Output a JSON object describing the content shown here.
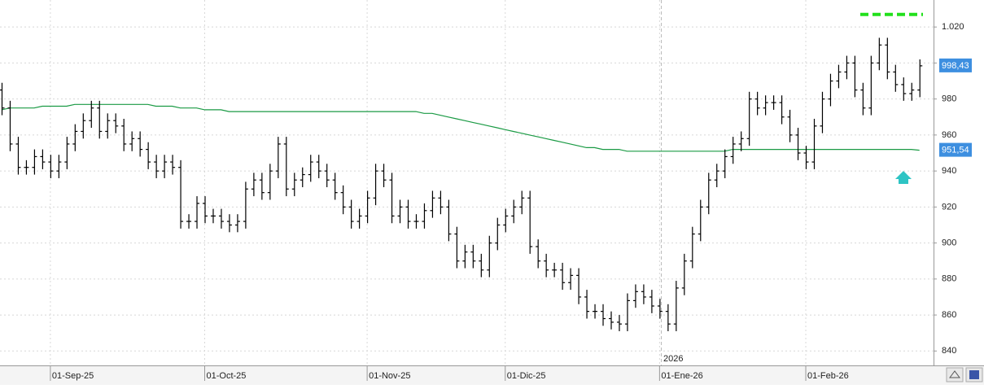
{
  "chart_data": {
    "type": "ohlc",
    "categories": [
      null,
      null,
      null,
      null,
      null,
      null,
      "01-Sep-25",
      null,
      null,
      null,
      null,
      null,
      null,
      null,
      null,
      null,
      null,
      null,
      null,
      null,
      null,
      null,
      null,
      null,
      null,
      "01-Oct-25",
      null,
      null,
      null,
      null,
      null,
      null,
      null,
      null,
      null,
      null,
      null,
      null,
      null,
      null,
      null,
      null,
      null,
      null,
      null,
      "01-Nov-25",
      null,
      null,
      null,
      null,
      null,
      null,
      null,
      null,
      null,
      null,
      null,
      null,
      null,
      null,
      null,
      null,
      "01-Dic-25",
      null,
      null,
      null,
      null,
      null,
      null,
      null,
      null,
      null,
      null,
      null,
      null,
      null,
      null,
      null,
      null,
      null,
      null,
      "01-Ene-26",
      null,
      null,
      null,
      null,
      null,
      null,
      null,
      null,
      null,
      null,
      null,
      null,
      null,
      null,
      null,
      null,
      null,
      "01-Feb-26",
      null,
      null,
      null,
      null,
      null,
      null,
      null,
      null,
      null,
      null,
      null,
      null,
      null,
      null
    ],
    "open": [
      985,
      975,
      955,
      942,
      942,
      948,
      945,
      940,
      945,
      955,
      962,
      968,
      975,
      962,
      968,
      965,
      955,
      958,
      952,
      945,
      940,
      945,
      942,
      912,
      912,
      922,
      915,
      915,
      912,
      910,
      912,
      930,
      935,
      928,
      940,
      955,
      930,
      935,
      938,
      945,
      940,
      935,
      928,
      920,
      912,
      915,
      925,
      940,
      935,
      915,
      920,
      912,
      912,
      918,
      925,
      920,
      905,
      890,
      895,
      890,
      885,
      900,
      910,
      915,
      920,
      925,
      898,
      890,
      885,
      885,
      878,
      882,
      870,
      862,
      862,
      858,
      856,
      855,
      868,
      873,
      870,
      865,
      862,
      855,
      875,
      890,
      905,
      920,
      935,
      940,
      948,
      955,
      958,
      980,
      975,
      978,
      978,
      970,
      960,
      950,
      945,
      965,
      980,
      990,
      995,
      1000,
      985,
      975,
      1000,
      1010,
      995,
      988,
      983,
      985
    ],
    "high": [
      989,
      979,
      959,
      946,
      952,
      952,
      949,
      949,
      959,
      966,
      972,
      979,
      979,
      972,
      972,
      969,
      962,
      962,
      956,
      949,
      949,
      949,
      946,
      916,
      926,
      926,
      919,
      919,
      916,
      916,
      934,
      939,
      939,
      944,
      959,
      959,
      939,
      942,
      949,
      949,
      944,
      939,
      932,
      924,
      919,
      929,
      944,
      944,
      939,
      924,
      924,
      916,
      922,
      929,
      929,
      924,
      909,
      899,
      899,
      894,
      904,
      914,
      919,
      924,
      929,
      929,
      902,
      894,
      889,
      889,
      886,
      886,
      874,
      866,
      866,
      862,
      860,
      872,
      877,
      877,
      874,
      869,
      866,
      879,
      894,
      909,
      924,
      939,
      944,
      952,
      959,
      962,
      984,
      984,
      982,
      982,
      982,
      974,
      964,
      954,
      969,
      984,
      994,
      999,
      1004,
      1004,
      989,
      1004,
      1014,
      1014,
      999,
      992,
      989,
      1002
    ],
    "low": [
      971,
      951,
      938,
      938,
      938,
      941,
      936,
      936,
      941,
      951,
      958,
      964,
      958,
      958,
      961,
      951,
      951,
      948,
      941,
      936,
      936,
      938,
      908,
      908,
      908,
      911,
      911,
      908,
      906,
      906,
      908,
      926,
      924,
      924,
      936,
      926,
      926,
      931,
      934,
      936,
      931,
      924,
      916,
      908,
      908,
      911,
      921,
      931,
      911,
      911,
      908,
      908,
      908,
      914,
      916,
      901,
      886,
      886,
      886,
      881,
      881,
      896,
      906,
      911,
      916,
      894,
      886,
      881,
      881,
      874,
      874,
      866,
      858,
      858,
      854,
      852,
      851,
      851,
      864,
      866,
      861,
      858,
      851,
      851,
      871,
      886,
      901,
      916,
      931,
      936,
      944,
      951,
      954,
      971,
      971,
      974,
      966,
      956,
      946,
      941,
      941,
      961,
      976,
      986,
      991,
      981,
      971,
      971,
      996,
      991,
      984,
      979,
      979,
      981
    ],
    "close": [
      975,
      955,
      942,
      942,
      948,
      945,
      940,
      945,
      955,
      962,
      968,
      975,
      962,
      968,
      965,
      955,
      958,
      952,
      945,
      940,
      945,
      942,
      912,
      912,
      922,
      915,
      915,
      912,
      910,
      912,
      930,
      935,
      928,
      940,
      955,
      930,
      935,
      938,
      945,
      940,
      935,
      928,
      920,
      912,
      915,
      925,
      940,
      935,
      915,
      920,
      912,
      912,
      918,
      925,
      920,
      905,
      890,
      895,
      890,
      885,
      900,
      910,
      915,
      920,
      925,
      898,
      890,
      885,
      885,
      878,
      882,
      870,
      862,
      862,
      858,
      856,
      855,
      868,
      873,
      870,
      865,
      862,
      855,
      875,
      890,
      905,
      920,
      935,
      940,
      948,
      955,
      958,
      980,
      975,
      978,
      978,
      970,
      960,
      950,
      945,
      965,
      980,
      990,
      995,
      1000,
      985,
      975,
      1000,
      1010,
      995,
      988,
      983,
      985,
      998.43
    ],
    "color": "#000000",
    "last_label": "998,43",
    "label_color": "#3d8fe0",
    "overlay": {
      "type": "line",
      "color": "#1a9a44",
      "label_color": "#3d8fe0",
      "last_label": "951,54",
      "values": [
        974,
        975,
        975,
        975,
        975,
        976,
        976,
        976,
        976,
        977,
        977,
        977,
        977,
        977,
        977,
        977,
        977,
        977,
        977,
        976,
        976,
        976,
        975,
        975,
        975,
        974,
        974,
        974,
        973,
        973,
        973,
        973,
        973,
        973,
        973,
        973,
        973,
        973,
        973,
        973,
        973,
        973,
        973,
        973,
        973,
        973,
        973,
        973,
        973,
        973,
        973,
        973,
        972,
        972,
        971,
        970,
        969,
        968,
        967,
        966,
        965,
        964,
        963,
        962,
        961,
        960,
        959,
        958,
        957,
        956,
        955,
        954,
        953,
        953,
        952,
        952,
        952,
        951,
        951,
        951,
        951,
        951,
        951,
        951,
        951,
        951,
        951,
        951,
        951,
        951,
        952,
        952,
        952,
        952,
        952,
        952,
        952,
        952,
        952,
        952,
        952,
        952,
        952,
        952,
        952,
        952,
        952,
        952,
        952,
        952,
        952,
        952,
        952,
        951.54
      ]
    },
    "hline": {
      "value": 1027,
      "color": "#22e01c"
    },
    "annotation": "2026",
    "ylim": [
      832,
      1035
    ],
    "yticks": [
      840,
      860,
      880,
      900,
      920,
      940,
      960,
      980,
      1000,
      {
        "value": 1020,
        "label": "1.020"
      }
    ],
    "grid": true
  }
}
